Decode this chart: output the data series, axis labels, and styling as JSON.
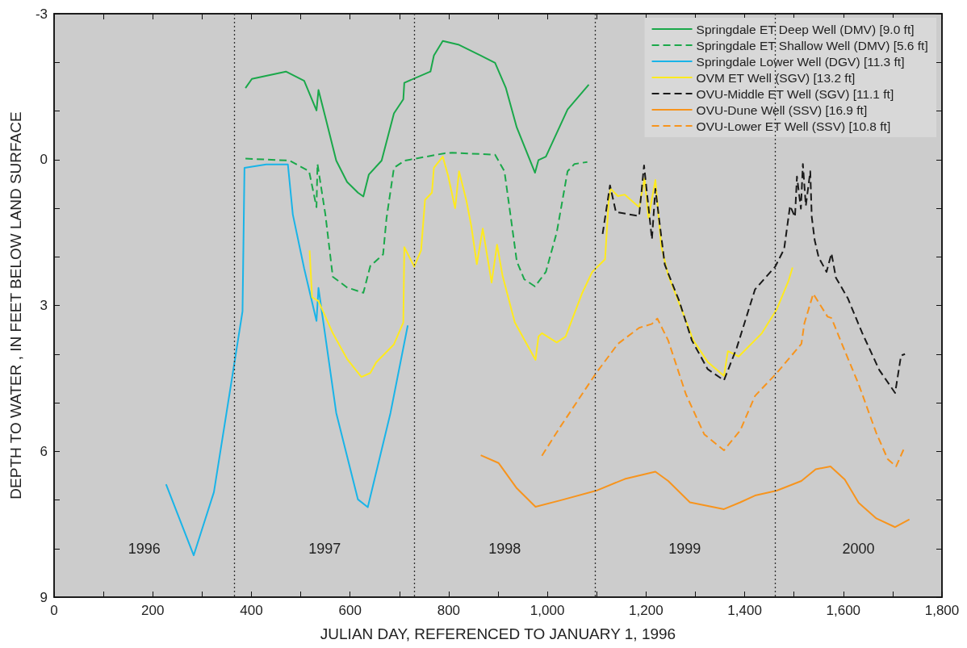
{
  "chart_data": {
    "type": "line",
    "xlabel": "JULIAN DAY, REFERENCED TO JANUARY 1, 1996",
    "ylabel": "DEPTH TO WATER , IN FEET BELOW LAND SURFACE",
    "xlim": [
      0,
      1800
    ],
    "ylim": [
      9,
      -3
    ],
    "xticks": [
      0,
      {
        "value": 100,
        "label": null
      },
      200,
      {
        "value": 300,
        "label": null
      },
      400,
      {
        "value": 500,
        "label": null
      },
      600,
      {
        "value": 700,
        "label": null
      },
      800,
      {
        "value": 900,
        "label": null
      },
      {
        "value": 1000,
        "label": "1,000"
      },
      {
        "value": 1100,
        "label": null
      },
      {
        "value": 1200,
        "label": "1,200"
      },
      {
        "value": 1300,
        "label": null
      },
      {
        "value": 1400,
        "label": "1,400"
      },
      {
        "value": 1500,
        "label": null
      },
      {
        "value": 1600,
        "label": "1,600"
      },
      {
        "value": 1700,
        "label": null
      },
      {
        "value": 1800,
        "label": "1,800"
      }
    ],
    "yticks": [
      -3,
      {
        "value": -2,
        "label": null
      },
      {
        "value": -1,
        "label": null
      },
      0,
      {
        "value": 1,
        "label": null
      },
      {
        "value": 2,
        "label": null
      },
      3,
      {
        "value": 4,
        "label": null
      },
      {
        "value": 5,
        "label": null
      },
      6,
      {
        "value": 7,
        "label": null
      },
      {
        "value": 8,
        "label": null
      },
      9
    ],
    "grid": false,
    "legend": "top right",
    "marker": "none",
    "ref_lines": [
      {
        "axis": "x",
        "value": 366,
        "line_style": "dotted",
        "color": "#333333"
      },
      {
        "axis": "x",
        "value": 731,
        "line_style": "dotted",
        "color": "#333333"
      },
      {
        "axis": "x",
        "value": 1096,
        "line_style": "dotted",
        "color": "#333333"
      },
      {
        "axis": "x",
        "value": 1461,
        "line_style": "dotted",
        "color": "#333333"
      }
    ],
    "annotations": [
      "1996",
      "1997",
      "1998",
      "1999",
      "2000"
    ],
    "series": [
      {
        "name": "Springdale ET Deep Well (DMV) [9.0 ft]",
        "color": "#1aa84a",
        "line_style": "solid",
        "x": [
          388,
          401,
          470,
          507,
          532,
          536,
          550,
          572,
          594,
          616,
          627,
          638,
          664,
          689,
          708,
          710,
          763,
          770,
          788,
          821,
          865,
          894,
          916,
          938,
          975,
          982,
          997,
          1041,
          1084
        ],
        "values": [
          -1.47,
          -1.66,
          -1.81,
          -1.62,
          -1.01,
          -1.43,
          -0.87,
          0.02,
          0.46,
          0.68,
          0.76,
          0.31,
          0.02,
          -0.95,
          -1.24,
          -1.58,
          -1.81,
          -2.14,
          -2.44,
          -2.36,
          -2.14,
          -1.99,
          -1.47,
          -0.66,
          0.27,
          0.01,
          -0.06,
          -1.03,
          -1.54
        ]
      },
      {
        "name": "Springdale ET Shallow Well (DMV) [5.6 ft]",
        "color": "#1aa84a",
        "line_style": "dashed",
        "x": [
          388,
          477,
          517,
          532,
          534,
          550,
          565,
          594,
          627,
          641,
          667,
          674,
          689,
          711,
          792,
          807,
          894,
          913,
          927,
          938,
          953,
          975,
          997,
          1019,
          1041,
          1055,
          1081
        ],
        "values": [
          -0.02,
          0.02,
          0.24,
          0.98,
          0.09,
          1.13,
          2.41,
          2.63,
          2.74,
          2.19,
          1.95,
          1.2,
          0.17,
          0.02,
          -0.13,
          -0.14,
          -0.1,
          0.24,
          1.27,
          2.09,
          2.46,
          2.61,
          2.31,
          1.5,
          0.24,
          0.09,
          0.05
        ]
      },
      {
        "name": "Springdale Lower Well (DGV) [11.3 ft]",
        "color": "#19b4e8",
        "line_style": "solid",
        "x": [
          227,
          283,
          324,
          365,
          382,
          386,
          430,
          474,
          484,
          507,
          532,
          536,
          572,
          616,
          636,
          682,
          717
        ],
        "values": [
          6.68,
          8.14,
          6.84,
          4.22,
          3.12,
          0.17,
          0.1,
          0.1,
          1.13,
          2.24,
          3.32,
          2.64,
          5.21,
          6.99,
          7.15,
          5.21,
          3.41
        ]
      },
      {
        "name": "OVM ET Well (SGV) [13.2 ft]",
        "color": "#ffea1e",
        "line_style": "solid",
        "x": [
          518,
          523,
          536,
          565,
          594,
          623,
          641,
          653,
          689,
          708,
          710,
          730,
          744,
          752,
          766,
          770,
          788,
          799,
          813,
          821,
          836,
          846,
          857,
          869,
          887,
          898,
          909,
          934,
          976,
          982,
          989,
          1019,
          1037,
          1070,
          1091,
          1117,
          1124,
          1128,
          1143,
          1157,
          1186,
          1197,
          1205,
          1219,
          1231,
          1245,
          1274,
          1296,
          1325,
          1358,
          1366,
          1388,
          1435,
          1465,
          1489,
          1497
        ],
        "values": [
          1.87,
          2.83,
          2.91,
          3.57,
          4.1,
          4.47,
          4.39,
          4.17,
          3.8,
          3.35,
          1.8,
          2.2,
          1.87,
          0.83,
          0.68,
          0.17,
          -0.06,
          0.34,
          1.0,
          0.24,
          0.85,
          1.38,
          2.15,
          1.42,
          2.53,
          1.75,
          2.38,
          3.35,
          4.12,
          3.64,
          3.57,
          3.76,
          3.64,
          2.76,
          2.31,
          2.05,
          0.9,
          0.6,
          0.75,
          0.72,
          0.98,
          0.39,
          1.2,
          0.42,
          1.79,
          2.38,
          3.13,
          3.72,
          4.16,
          4.45,
          3.94,
          4.05,
          3.57,
          3.08,
          2.49,
          2.22
        ]
      },
      {
        "name": "OVU-Middle ET Well (SGV) [11.1 ft]",
        "color": "#1a1a1a",
        "line_style": "dashed",
        "x": [
          1112,
          1127,
          1139,
          1186,
          1196,
          1212,
          1219,
          1238,
          1267,
          1293,
          1325,
          1358,
          1384,
          1421,
          1462,
          1480,
          1492,
          1502,
          1506,
          1514,
          1518,
          1524,
          1533,
          1536,
          1542,
          1550,
          1566,
          1576,
          1585,
          1609,
          1638,
          1673,
          1705,
          1717,
          1725
        ],
        "values": [
          1.53,
          0.53,
          1.08,
          1.16,
          0.12,
          1.64,
          0.6,
          2.16,
          2.9,
          3.72,
          4.31,
          4.54,
          3.87,
          2.67,
          2.2,
          1.84,
          0.95,
          1.18,
          0.35,
          1.01,
          0.09,
          0.95,
          0.24,
          1.18,
          1.66,
          2.01,
          2.31,
          1.93,
          2.43,
          2.85,
          3.56,
          4.33,
          4.8,
          4.03,
          4.0
        ]
      },
      {
        "name": "OVU-Dune Well (SSV) [16.9 ft]",
        "color": "#f7941d",
        "line_style": "solid",
        "x": [
          865,
          901,
          938,
          976,
          1026,
          1099,
          1157,
          1219,
          1245,
          1289,
          1358,
          1391,
          1421,
          1465,
          1515,
          1544,
          1574,
          1603,
          1631,
          1667,
          1705,
          1734
        ],
        "values": [
          6.08,
          6.24,
          6.76,
          7.14,
          7.01,
          6.81,
          6.57,
          6.42,
          6.61,
          7.05,
          7.19,
          7.05,
          6.91,
          6.81,
          6.61,
          6.37,
          6.31,
          6.58,
          7.06,
          7.38,
          7.56,
          7.4
        ]
      },
      {
        "name": "OVU-Lower ET Well (SSV) [10.8 ft]",
        "color": "#f7941d",
        "line_style": "dashed",
        "x": [
          989,
          1026,
          1070,
          1099,
          1143,
          1186,
          1212,
          1223,
          1245,
          1281,
          1318,
          1358,
          1391,
          1421,
          1465,
          1515,
          1521,
          1539,
          1568,
          1576,
          1602,
          1631,
          1667,
          1690,
          1707,
          1725
        ],
        "values": [
          6.09,
          5.5,
          4.83,
          4.39,
          3.79,
          3.46,
          3.38,
          3.27,
          3.72,
          4.83,
          5.65,
          5.98,
          5.57,
          4.86,
          4.39,
          3.79,
          3.37,
          2.76,
          3.23,
          3.26,
          3.91,
          4.62,
          5.63,
          6.16,
          6.31,
          5.9
        ]
      }
    ]
  }
}
